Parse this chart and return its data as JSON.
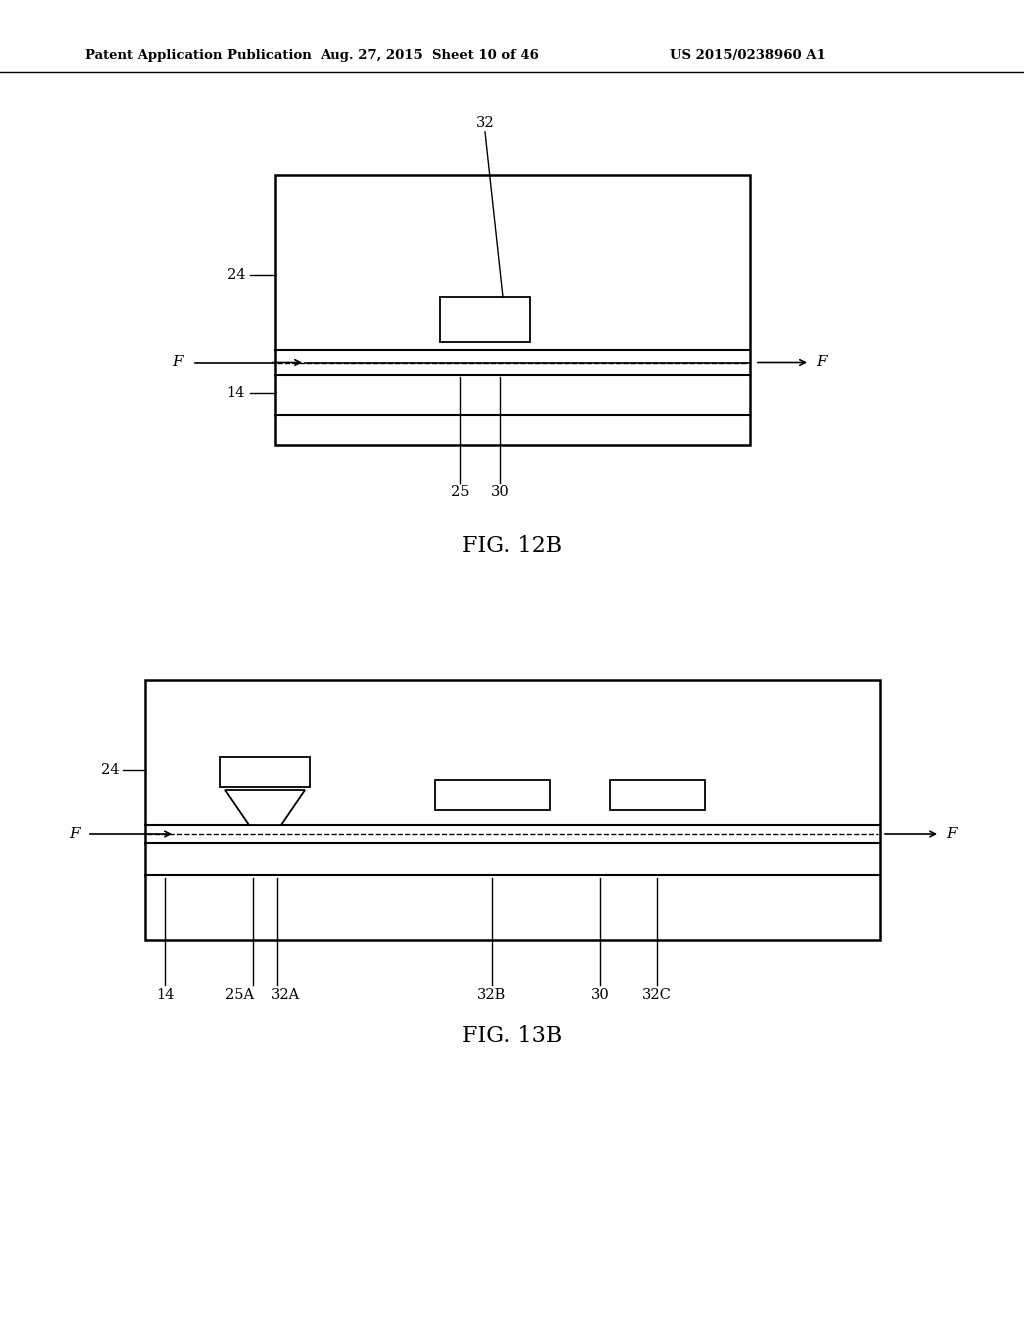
{
  "background_color": "#ffffff",
  "header_text": "Patent Application Publication",
  "header_date": "Aug. 27, 2015  Sheet 10 of 46",
  "header_patent": "US 2015/0238960 A1",
  "fig12b_label": "FIG. 12B",
  "fig13b_label": "FIG. 13B",
  "text_color": "#000000",
  "line_color": "#000000"
}
